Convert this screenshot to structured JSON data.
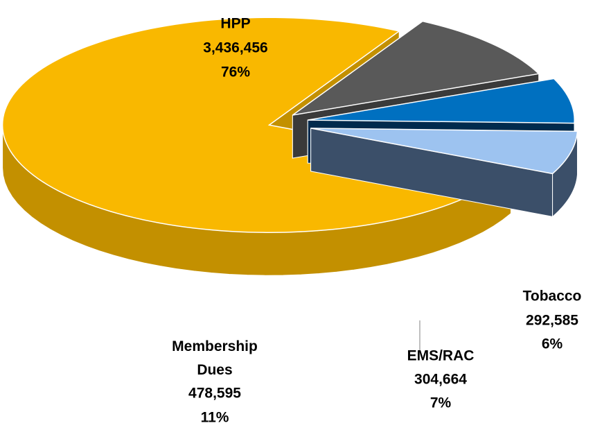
{
  "chart_data": {
    "type": "pie3d",
    "categories": [
      "HPP",
      "Membership Dues",
      "EMS/RAC",
      "Tobacco"
    ],
    "values": [
      3436456,
      478595,
      304664,
      292585
    ],
    "value_labels": [
      "3,436,456",
      "478,595",
      "304,664",
      "292,585"
    ],
    "percent_labels": [
      "76%",
      "11%",
      "7%",
      "6%"
    ],
    "colors": [
      "#f9b800",
      "#595959",
      "#0070c0",
      "#9dc3f0"
    ],
    "side_colors": [
      "#c39000",
      "#3a3a3a",
      "#002a4d",
      "#3b4f69"
    ]
  }
}
